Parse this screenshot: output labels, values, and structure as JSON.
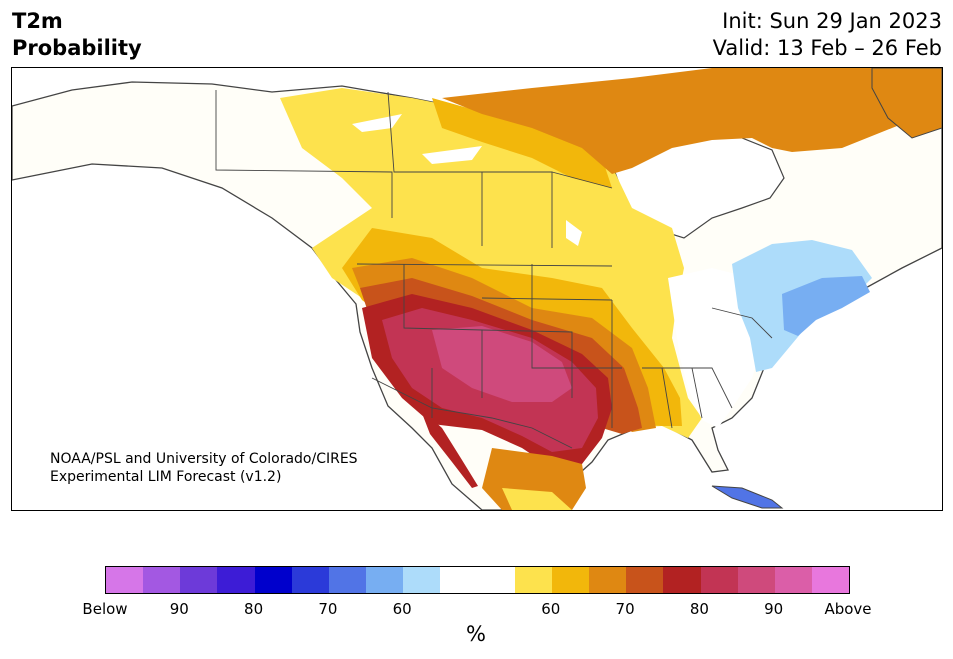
{
  "title": {
    "left_line1": "T2m",
    "left_line2": "Probability",
    "right_line1": "Init: Sun 29 Jan 2023",
    "right_line2": "Valid: 13 Feb – 26 Feb"
  },
  "credit": {
    "line1": "NOAA/PSL and University of Colorado/CIRES",
    "line2": "Experimental LIM Forecast (v1.2)"
  },
  "colorbar": {
    "unit": "%",
    "colors": [
      "#d676e8",
      "#a358e2",
      "#6d3ad9",
      "#3d1cd6",
      "#0000cc",
      "#2b3ad9",
      "#5174e6",
      "#77aef2",
      "#addcfa",
      "#ffffff",
      "#ffffff",
      "#fde24d",
      "#f2b70b",
      "#df8812",
      "#c8531b",
      "#b22222",
      "#c23454",
      "#cf4a7c",
      "#db5ea8",
      "#e877dd"
    ],
    "ticks": [
      "Below",
      "90",
      "80",
      "70",
      "60",
      "60",
      "70",
      "80",
      "90",
      "Above"
    ]
  },
  "palette": {
    "land": "#fffef8",
    "yellow": "#fde24d",
    "gold": "#f2b70b",
    "orange": "#df8812",
    "darkorange": "#c8531b",
    "red": "#b22222",
    "crimson": "#c23454",
    "pink": "#cf4a7c",
    "lightblue": "#addcfa",
    "midblue": "#77aef2",
    "blue": "#5174e6"
  }
}
